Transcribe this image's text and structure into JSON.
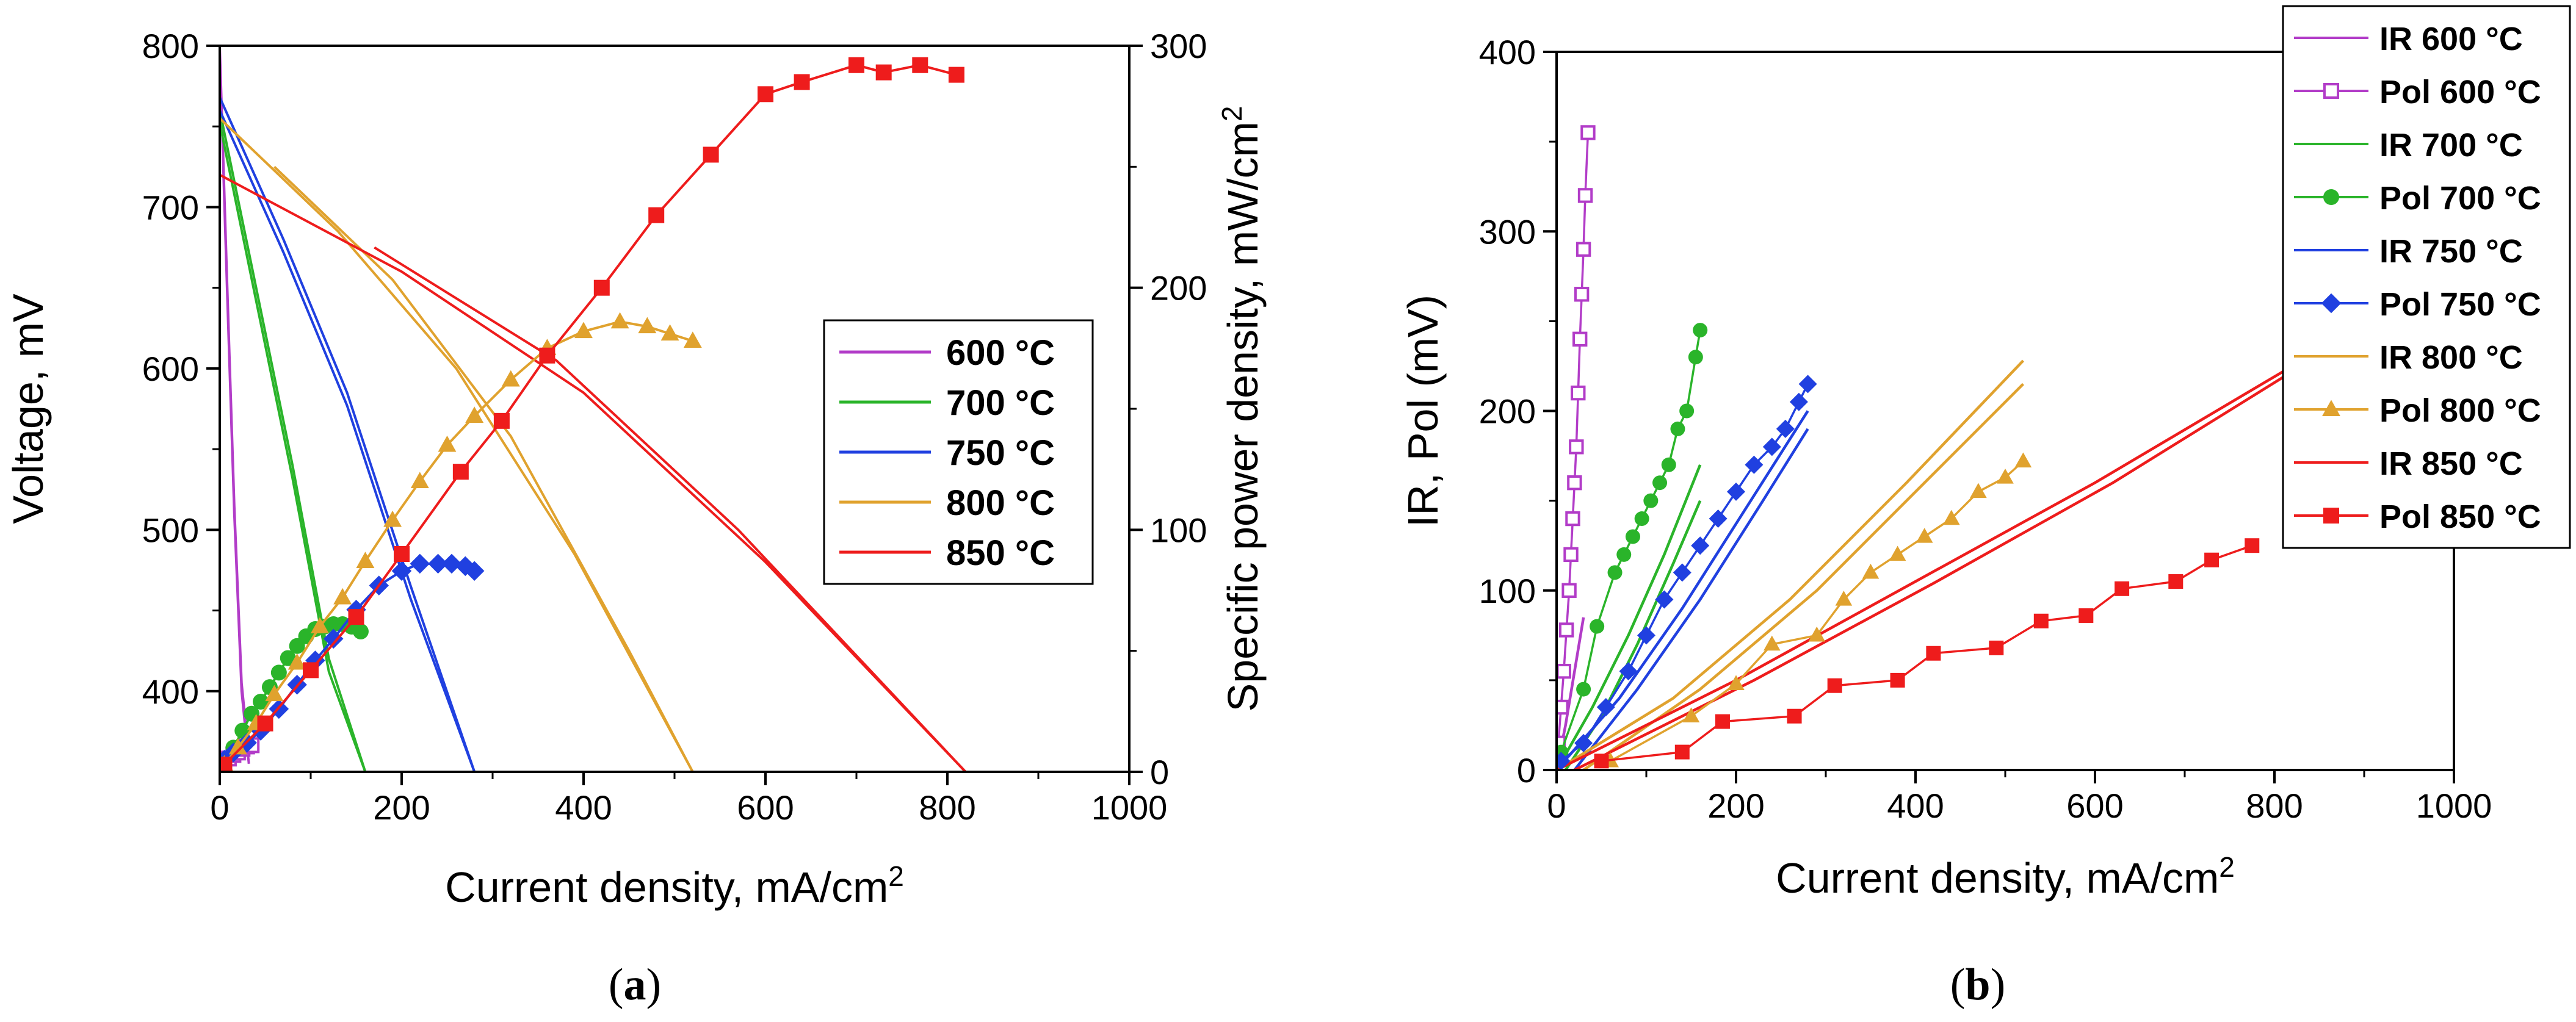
{
  "figure": {
    "panel_a_label": {
      "open": "(",
      "letter": "a",
      "close": ")"
    },
    "panel_b_label": {
      "open": "(",
      "letter": "b",
      "close": ")"
    }
  },
  "chart_data": [
    {
      "type": "line",
      "id": "panel-a",
      "title": "",
      "xlabel": "Current density, mA/cm",
      "xlabel_sup": "2",
      "ylabel": "Voltage, mV",
      "y2label": "Specific power density, mW/cm",
      "y2label_sup": "2",
      "xlim": [
        0,
        1000
      ],
      "ylim": [
        350,
        800
      ],
      "y2lim": [
        0,
        300
      ],
      "xticks": [
        0,
        200,
        400,
        600,
        800,
        1000
      ],
      "yticks": [
        400,
        500,
        600,
        700,
        800
      ],
      "y2ticks": [
        0,
        100,
        200,
        300
      ],
      "legend_position": "center-right",
      "legend": [
        {
          "label": "600 °C",
          "color": "#b23cc8"
        },
        {
          "label": "700 °C",
          "color": "#2ab42a"
        },
        {
          "label": "750 °C",
          "color": "#2040e0"
        },
        {
          "label": "800 °C",
          "color": "#e0a22e"
        },
        {
          "label": "850 °C",
          "color": "#ee1c1c"
        }
      ],
      "voltage_series": [
        {
          "name": "600 °C",
          "color": "#b23cc8",
          "x": [
            0,
            8,
            16,
            24,
            32
          ],
          "y": [
            800,
            655,
            515,
            405,
            360
          ],
          "x2": [
            0,
            8,
            16,
            24,
            32
          ],
          "y2": [
            795,
            650,
            510,
            400,
            355
          ]
        },
        {
          "name": "700 °C",
          "color": "#2ab42a",
          "x": [
            0,
            40,
            80,
            120,
            160
          ],
          "y": [
            760,
            650,
            540,
            420,
            350
          ],
          "x2": [
            0,
            40,
            80,
            120,
            160
          ],
          "y2": [
            752,
            642,
            532,
            412,
            350
          ]
        },
        {
          "name": "750 °C",
          "color": "#2040e0",
          "x": [
            0,
            70,
            140,
            210,
            280
          ],
          "y": [
            768,
            680,
            585,
            465,
            350
          ],
          "x2": [
            0,
            70,
            140,
            210,
            280
          ],
          "y2": [
            760,
            672,
            577,
            457,
            350
          ]
        },
        {
          "name": "800 °C",
          "color": "#e0a22e",
          "x": [
            0,
            130,
            260,
            390,
            520
          ],
          "y": [
            755,
            685,
            600,
            485,
            350
          ],
          "x2": [
            60,
            190,
            320,
            450,
            520
          ],
          "y2": [
            725,
            655,
            558,
            425,
            350
          ]
        },
        {
          "name": "850 °C",
          "color": "#ee1c1c",
          "x": [
            0,
            200,
            400,
            600,
            820
          ],
          "y": [
            720,
            660,
            585,
            480,
            350
          ],
          "x2": [
            170,
            370,
            570,
            820
          ],
          "y2": [
            675,
            605,
            500,
            350
          ]
        }
      ],
      "power_series": [
        {
          "name": "600 °C",
          "color": "#b23cc8",
          "marker": "square-open",
          "x": [
            5,
            10,
            15,
            20,
            25,
            30,
            35
          ],
          "y": [
            4,
            5.5,
            7,
            8,
            9.5,
            10.5,
            11
          ]
        },
        {
          "name": "700 °C",
          "color": "#2ab42a",
          "marker": "circle",
          "x": [
            5,
            15,
            25,
            35,
            45,
            55,
            65,
            75,
            85,
            95,
            105,
            115,
            125,
            135,
            145,
            155
          ],
          "y": [
            3,
            10,
            17,
            24,
            29,
            35,
            41,
            47,
            52,
            56,
            59,
            60,
            61,
            61,
            60,
            58
          ]
        },
        {
          "name": "750 °C",
          "color": "#2040e0",
          "marker": "diamond",
          "x": [
            5,
            15,
            30,
            45,
            65,
            85,
            105,
            125,
            150,
            175,
            200,
            220,
            240,
            255,
            270,
            280
          ],
          "y": [
            5,
            8,
            12,
            17,
            26,
            36,
            46,
            55,
            67,
            77,
            83,
            86,
            86,
            86,
            85,
            83
          ]
        },
        {
          "name": "800 °C",
          "color": "#e0a22e",
          "marker": "triangle",
          "x": [
            5,
            20,
            40,
            60,
            85,
            110,
            135,
            160,
            190,
            220,
            250,
            280,
            320,
            360,
            400,
            440,
            470,
            495,
            520
          ],
          "y": [
            3,
            10,
            20,
            32,
            45,
            60,
            72,
            87,
            104,
            120,
            135,
            147,
            162,
            175,
            182,
            186,
            184,
            181,
            178
          ]
        },
        {
          "name": "850 °C",
          "color": "#ee1c1c",
          "marker": "square",
          "x": [
            5,
            50,
            100,
            150,
            200,
            265,
            310,
            360,
            420,
            480,
            540,
            600,
            640,
            700,
            730,
            770,
            810
          ],
          "y": [
            3,
            20,
            42,
            64,
            90,
            124,
            145,
            172,
            200,
            230,
            255,
            280,
            285,
            292,
            289,
            292,
            288
          ]
        }
      ]
    },
    {
      "type": "line",
      "id": "panel-b",
      "title": "",
      "xlabel": "Current density, mA/cm",
      "xlabel_sup": "2",
      "ylabel": "IR, Pol (mV)",
      "xlim": [
        0,
        1000
      ],
      "ylim": [
        0,
        400
      ],
      "xticks": [
        0,
        200,
        400,
        600,
        800,
        1000
      ],
      "yticks": [
        0,
        100,
        200,
        300,
        400
      ],
      "legend_position": "top-right",
      "legend": [
        {
          "label": "IR 600 °C",
          "color": "#b23cc8",
          "marker": "line"
        },
        {
          "label": "Pol 600 °C",
          "color": "#b23cc8",
          "marker": "square-open"
        },
        {
          "label": "IR 700 °C",
          "color": "#2ab42a",
          "marker": "line"
        },
        {
          "label": "Pol 700 °C",
          "color": "#2ab42a",
          "marker": "circle"
        },
        {
          "label": "IR 750 °C",
          "color": "#2040e0",
          "marker": "line"
        },
        {
          "label": "Pol 750 °C",
          "color": "#2040e0",
          "marker": "diamond"
        },
        {
          "label": "IR 800 °C",
          "color": "#e0a22e",
          "marker": "line"
        },
        {
          "label": "Pol 800 °C",
          "color": "#e0a22e",
          "marker": "triangle"
        },
        {
          "label": "IR 850 °C",
          "color": "#ee1c1c",
          "marker": "line"
        },
        {
          "label": "Pol 850 °C",
          "color": "#ee1c1c",
          "marker": "square"
        }
      ],
      "ir_series": [
        {
          "name": "IR 600 °C",
          "color": "#b23cc8",
          "x": [
            0,
            10,
            20,
            30
          ],
          "y": [
            0,
            25,
            55,
            85
          ]
        },
        {
          "name": "IR 700 °C",
          "color": "#2ab42a",
          "x": [
            0,
            40,
            80,
            120,
            160
          ],
          "y": [
            0,
            35,
            75,
            120,
            170
          ],
          "x2": [
            10,
            50,
            90,
            130,
            160
          ],
          "y2": [
            0,
            30,
            70,
            115,
            150
          ]
        },
        {
          "name": "IR 750 °C",
          "color": "#2040e0",
          "x": [
            0,
            70,
            140,
            210,
            280
          ],
          "y": [
            0,
            40,
            90,
            145,
            200
          ],
          "x2": [
            20,
            90,
            160,
            230,
            280
          ],
          "y2": [
            0,
            45,
            95,
            150,
            190
          ]
        },
        {
          "name": "IR 800 °C",
          "color": "#e0a22e",
          "x": [
            0,
            130,
            260,
            390,
            520
          ],
          "y": [
            0,
            40,
            95,
            160,
            228
          ],
          "x2": [
            30,
            160,
            290,
            420,
            520
          ],
          "y2": [
            0,
            45,
            100,
            165,
            215
          ]
        },
        {
          "name": "IR 850 °C",
          "color": "#ee1c1c",
          "x": [
            0,
            200,
            400,
            600,
            820
          ],
          "y": [
            0,
            50,
            105,
            160,
            225
          ],
          "x2": [
            20,
            220,
            420,
            620,
            820
          ],
          "y2": [
            0,
            50,
            104,
            160,
            222
          ]
        }
      ],
      "pol_series": [
        {
          "name": "Pol 600 °C",
          "color": "#b23cc8",
          "marker": "square-open",
          "x": [
            2,
            5,
            8,
            11,
            14,
            16,
            18,
            20,
            22,
            24,
            26,
            28,
            30,
            32,
            35
          ],
          "y": [
            15,
            35,
            55,
            78,
            100,
            120,
            140,
            160,
            180,
            210,
            240,
            265,
            290,
            320,
            355
          ]
        },
        {
          "name": "Pol 700 °C",
          "color": "#2ab42a",
          "marker": "circle",
          "x": [
            5,
            30,
            45,
            65,
            75,
            85,
            95,
            105,
            115,
            125,
            135,
            145,
            155,
            160
          ],
          "y": [
            10,
            45,
            80,
            110,
            120,
            130,
            140,
            150,
            160,
            170,
            190,
            200,
            230,
            245
          ]
        },
        {
          "name": "Pol 750 °C",
          "color": "#2040e0",
          "marker": "diamond",
          "x": [
            5,
            30,
            55,
            80,
            100,
            120,
            140,
            160,
            180,
            200,
            220,
            240,
            255,
            270,
            280
          ],
          "y": [
            5,
            15,
            35,
            55,
            75,
            95,
            110,
            125,
            140,
            155,
            170,
            180,
            190,
            205,
            215
          ]
        },
        {
          "name": "Pol 800 °C",
          "color": "#e0a22e",
          "marker": "triangle",
          "x": [
            60,
            150,
            200,
            240,
            290,
            320,
            350,
            380,
            410,
            440,
            470,
            500,
            520
          ],
          "y": [
            5,
            30,
            48,
            70,
            75,
            95,
            110,
            120,
            130,
            140,
            155,
            163,
            172
          ]
        },
        {
          "name": "Pol 850 °C",
          "color": "#ee1c1c",
          "marker": "square",
          "x": [
            50,
            140,
            185,
            265,
            310,
            380,
            420,
            490,
            540,
            590,
            630,
            690,
            730,
            775
          ],
          "y": [
            5,
            10,
            27,
            30,
            47,
            50,
            65,
            68,
            83,
            86,
            101,
            105,
            117,
            125
          ]
        }
      ]
    }
  ]
}
